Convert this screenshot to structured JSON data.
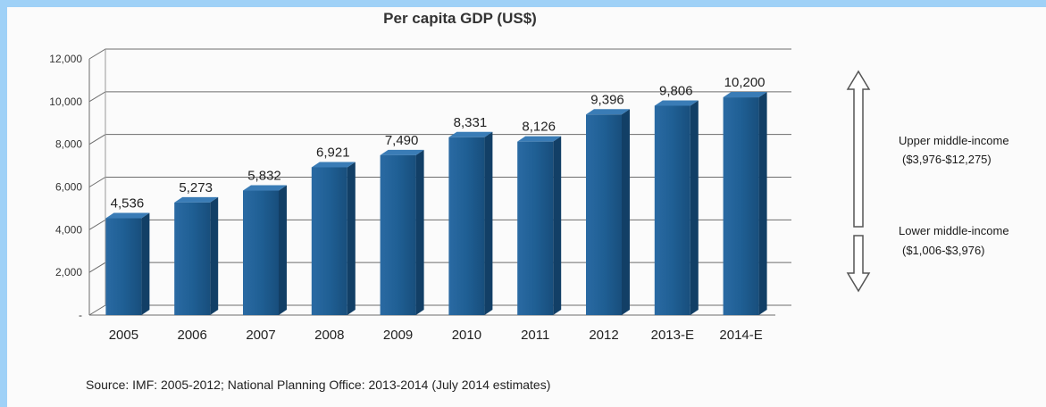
{
  "chart_data": {
    "type": "bar",
    "title": "Per capita GDP (US$)",
    "categories": [
      "2005",
      "2006",
      "2007",
      "2008",
      "2009",
      "2010",
      "2011",
      "2012",
      "2013-E",
      "2014-E"
    ],
    "values": [
      4536,
      5273,
      5832,
      6921,
      7490,
      8331,
      8126,
      9396,
      9806,
      10200
    ],
    "data_labels": [
      "4,536",
      "5,273",
      "5,832",
      "6,921",
      "7,490",
      "8,331",
      "8,126",
      "9,396",
      "9,806",
      "10,200"
    ],
    "y_ticks": [
      "-",
      "2,000",
      "4,000",
      "6,000",
      "8,000",
      "10,000",
      "12,000"
    ],
    "ylim": [
      0,
      12000
    ],
    "grid": true,
    "bar_color": "#1f5f94",
    "annotations": {
      "upper_label": "Upper middle-income",
      "upper_range": "($3,976-$12,275)",
      "lower_label": "Lower middle-income",
      "lower_range": "($1,006-$3,976)",
      "arrow_color": "#555555"
    },
    "source": "Source: IMF: 2005-2012; National Planning Office: 2013-2014 (July 2014 estimates)"
  }
}
